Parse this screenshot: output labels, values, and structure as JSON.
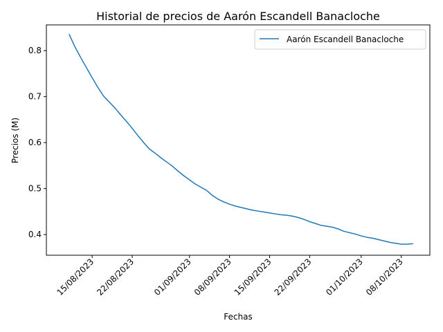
{
  "chart_data": {
    "type": "line",
    "title": "Historial de precios de Aarón Escandell Banacloche",
    "xlabel": "Fechas",
    "ylabel": "Precios (M)",
    "ylim": [
      0.355,
      0.856
    ],
    "xlim": [
      "2023-08-07",
      "2023-10-13"
    ],
    "grid": false,
    "legend_position": "top-right",
    "x_tick_values": [
      "2023-08-15",
      "2023-08-22",
      "2023-09-01",
      "2023-09-08",
      "2023-09-15",
      "2023-09-22",
      "2023-10-01",
      "2023-10-08"
    ],
    "x_tick_labels": [
      "15/08/2023",
      "22/08/2023",
      "01/09/2023",
      "08/09/2023",
      "15/09/2023",
      "22/09/2023",
      "01/10/2023",
      "08/10/2023"
    ],
    "y_ticks": [
      0.4,
      0.5,
      0.6,
      0.7,
      0.8
    ],
    "y_tick_labels": [
      "0.4",
      "0.5",
      "0.6",
      "0.7",
      "0.8"
    ],
    "series": [
      {
        "name": "Aarón Escandell Banacloche",
        "color": "#1f77b4",
        "x": [
          "2023-08-11",
          "2023-08-12",
          "2023-08-13",
          "2023-08-14",
          "2023-08-15",
          "2023-08-16",
          "2023-08-17",
          "2023-08-18",
          "2023-08-19",
          "2023-08-20",
          "2023-08-21",
          "2023-08-22",
          "2023-08-23",
          "2023-08-24",
          "2023-08-25",
          "2023-08-26",
          "2023-08-27",
          "2023-08-28",
          "2023-08-29",
          "2023-08-30",
          "2023-08-31",
          "2023-09-01",
          "2023-09-02",
          "2023-09-03",
          "2023-09-04",
          "2023-09-05",
          "2023-09-06",
          "2023-09-07",
          "2023-09-08",
          "2023-09-09",
          "2023-09-10",
          "2023-09-11",
          "2023-09-12",
          "2023-09-13",
          "2023-09-14",
          "2023-09-15",
          "2023-09-16",
          "2023-09-17",
          "2023-09-18",
          "2023-09-19",
          "2023-09-20",
          "2023-09-21",
          "2023-09-22",
          "2023-09-23",
          "2023-09-24",
          "2023-09-25",
          "2023-09-26",
          "2023-09-27",
          "2023-09-28",
          "2023-09-29",
          "2023-09-30",
          "2023-10-01",
          "2023-10-02",
          "2023-10-03",
          "2023-10-04",
          "2023-10-05",
          "2023-10-06",
          "2023-10-07",
          "2023-10-08",
          "2023-10-09",
          "2023-10-10"
        ],
        "values": [
          0.835,
          0.808,
          0.785,
          0.763,
          0.741,
          0.72,
          0.701,
          0.688,
          0.675,
          0.66,
          0.646,
          0.631,
          0.615,
          0.6,
          0.586,
          0.577,
          0.567,
          0.558,
          0.549,
          0.538,
          0.528,
          0.519,
          0.51,
          0.503,
          0.496,
          0.485,
          0.477,
          0.471,
          0.466,
          0.462,
          0.459,
          0.456,
          0.453,
          0.451,
          0.449,
          0.447,
          0.445,
          0.443,
          0.442,
          0.44,
          0.437,
          0.433,
          0.428,
          0.424,
          0.42,
          0.418,
          0.416,
          0.412,
          0.407,
          0.404,
          0.401,
          0.397,
          0.394,
          0.392,
          0.389,
          0.386,
          0.383,
          0.381,
          0.379,
          0.379,
          0.38
        ]
      }
    ]
  }
}
